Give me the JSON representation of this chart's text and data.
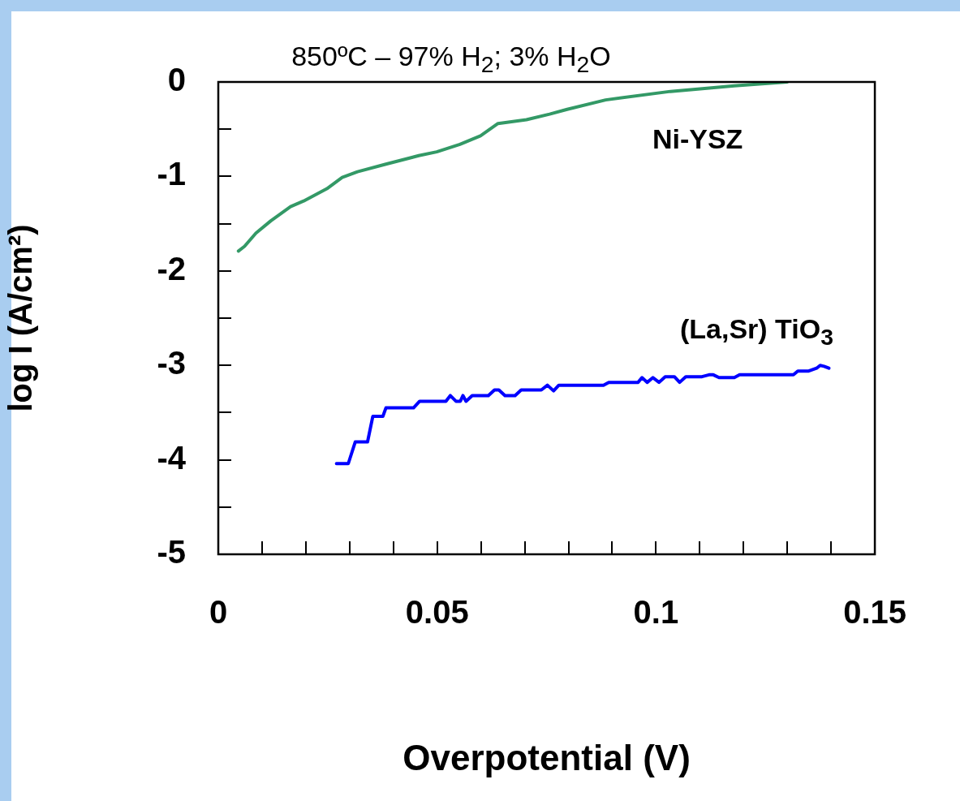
{
  "chart_data": {
    "type": "line",
    "title": "850ºC – 97% H$_{2}$; 3% H$_{2}$O",
    "xlabel": "Overpotential (V)",
    "ylabel": "log I (A/cm²)",
    "xlim": [
      0,
      0.15
    ],
    "ylim": [
      -5,
      0
    ],
    "xticks": [
      0,
      {
        "value": 0.01,
        "label": null
      },
      {
        "value": 0.02,
        "label": null
      },
      {
        "value": 0.03,
        "label": null
      },
      {
        "value": 0.04,
        "label": null
      },
      0.05,
      {
        "value": 0.06,
        "label": null
      },
      {
        "value": 0.07,
        "label": null
      },
      {
        "value": 0.08,
        "label": null
      },
      {
        "value": 0.09,
        "label": null
      },
      0.1,
      {
        "value": 0.11,
        "label": null
      },
      {
        "value": 0.12,
        "label": null
      },
      {
        "value": 0.13,
        "label": null
      },
      {
        "value": 0.14,
        "label": null
      },
      0.15
    ],
    "yticks": [
      -5,
      {
        "value": -4.5,
        "label": null
      },
      -4,
      {
        "value": -3.5,
        "label": null
      },
      -3,
      {
        "value": -2.5,
        "label": null
      },
      -2,
      {
        "value": -1.5,
        "label": null
      },
      -1,
      {
        "value": -0.5,
        "label": null
      },
      0
    ],
    "grid": false,
    "legend": false,
    "marker": "none",
    "line_style": "solid",
    "series": [
      {
        "name": "Ni-YSZ",
        "color": "#339966",
        "x": [
          0.0046,
          0.006,
          0.0086,
          0.012,
          0.0165,
          0.0195,
          0.0248,
          0.0283,
          0.0318,
          0.0383,
          0.0458,
          0.0499,
          0.0552,
          0.0599,
          0.0639,
          0.0704,
          0.0757,
          0.0797,
          0.0885,
          0.1033,
          0.1179,
          0.13
        ],
        "values": [
          -1.79,
          -1.74,
          -1.6,
          -1.47,
          -1.32,
          -1.26,
          -1.13,
          -1.01,
          -0.95,
          -0.87,
          -0.78,
          -0.74,
          -0.66,
          -0.57,
          -0.44,
          -0.4,
          -0.34,
          -0.29,
          -0.19,
          -0.1,
          -0.04,
          0
        ]
      },
      {
        "name": "(La,Sr) TiO$_{3}$",
        "color": "#0000ff",
        "x": [
          0.027,
          0.0297,
          0.0313,
          0.0341,
          0.0353,
          0.0376,
          0.0383,
          0.0446,
          0.046,
          0.052,
          0.053,
          0.0543,
          0.0553,
          0.0559,
          0.0566,
          0.058,
          0.0617,
          0.0631,
          0.0641,
          0.0655,
          0.0678,
          0.0692,
          0.0738,
          0.0752,
          0.0766,
          0.0778,
          0.088,
          0.0892,
          0.0959,
          0.0968,
          0.098,
          0.0993,
          0.1007,
          0.1021,
          0.1042,
          0.1054,
          0.1068,
          0.1105,
          0.1121,
          0.1131,
          0.1144,
          0.1179,
          0.1191,
          0.1314,
          0.1324,
          0.1349,
          0.1367,
          0.1375,
          0.1384,
          0.1395
        ],
        "values": [
          -4.04,
          -4.04,
          -3.81,
          -3.81,
          -3.54,
          -3.54,
          -3.45,
          -3.45,
          -3.38,
          -3.38,
          -3.32,
          -3.38,
          -3.38,
          -3.32,
          -3.38,
          -3.32,
          -3.32,
          -3.26,
          -3.26,
          -3.32,
          -3.32,
          -3.26,
          -3.26,
          -3.21,
          -3.27,
          -3.21,
          -3.21,
          -3.18,
          -3.18,
          -3.13,
          -3.18,
          -3.13,
          -3.18,
          -3.12,
          -3.12,
          -3.18,
          -3.12,
          -3.12,
          -3.1,
          -3.1,
          -3.13,
          -3.13,
          -3.1,
          -3.1,
          -3.06,
          -3.06,
          -3.03,
          -3,
          -3.01,
          -3.03
        ]
      }
    ]
  }
}
